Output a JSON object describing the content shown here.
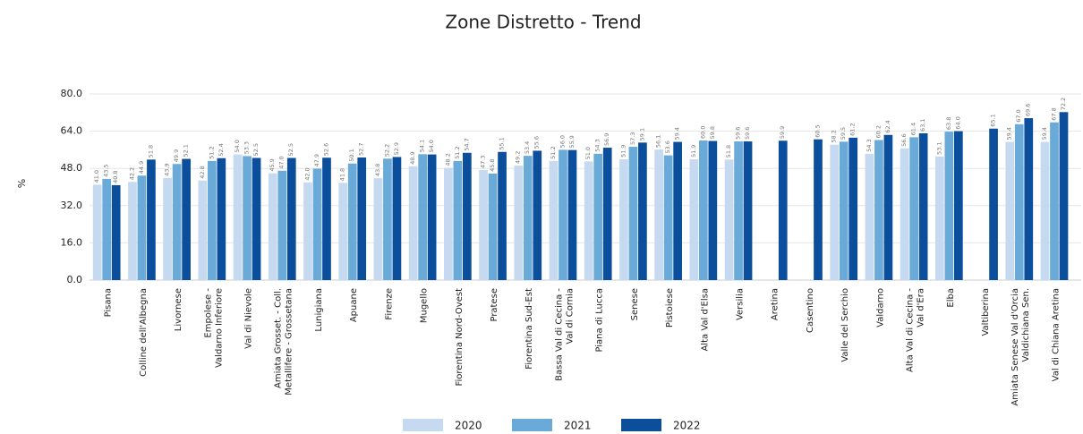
{
  "chart_data": {
    "type": "bar",
    "title": "Zone Distretto - Trend",
    "y_label": "%",
    "categories": [
      "Pisana",
      "Colline dell'Albegna",
      "Livornese",
      "Empolese -\nValdarno Inferiore",
      "Val di Nievole",
      "Amiata Grosset. - Coll.\nMetallifere - Grossetana",
      "Lunigiana",
      "Apuane",
      "Firenze",
      "Mugello",
      "Fiorentina Nord-Ovest",
      "Pratese",
      "Fiorentina Sud-Est",
      "Bassa Val di Cecina -\nVal di Cornia",
      "Piana di Lucca",
      "Senese",
      "Pistoiese",
      "Alta Val d'Elsa",
      "Versilia",
      "Aretina",
      "Casentino",
      "Valle del Serchio",
      "Valdarno",
      "Alta Val di Cecina -\nVal d'Era",
      "Elba",
      "Valtiberina",
      "Amiata Senese Val d'Orcia\nValdichiana Sen.",
      "Val di Chiana Aretina"
    ],
    "series": [
      {
        "name": "2020",
        "color": "#c5d9f0",
        "values": [
          41.0,
          42.2,
          43.9,
          42.8,
          54.0,
          45.9,
          42.0,
          41.8,
          43.8,
          48.9,
          48.2,
          47.3,
          49.2,
          51.2,
          51.0,
          51.9,
          56.1,
          51.9,
          51.8,
          null,
          null,
          58.2,
          54.3,
          56.6,
          53.1,
          null,
          59.4,
          59.4
        ],
        "value_labels": [
          "41.0",
          "42.2",
          "43.9",
          "42.8",
          "54.0",
          "45.9",
          "42.0",
          "41.8",
          "43.8",
          "48.9",
          "48.2",
          "47.3",
          "49.2",
          "51.2",
          "51.0",
          "51.9",
          "56.1",
          "51.9",
          "51.8",
          null,
          null,
          "58.2",
          "54.3",
          "56.6",
          "53.1",
          null,
          "59.4",
          "59.4"
        ]
      },
      {
        "name": "2021",
        "color": "#6aaad8",
        "values": [
          43.5,
          44.9,
          49.9,
          51.2,
          53.3,
          47.0,
          47.9,
          50.1,
          52.2,
          54.1,
          51.2,
          45.8,
          53.4,
          56.0,
          54.3,
          57.3,
          53.6,
          60.0,
          59.6,
          null,
          null,
          59.5,
          60.2,
          61.4,
          63.8,
          null,
          67.0,
          67.8
        ],
        "value_labels": [
          "43.5",
          "44.9",
          "49.9",
          "51.2",
          "53.3",
          "47.0",
          "47.9",
          "50.1",
          "52.2",
          "54.1",
          "51.2",
          "45.8",
          "53.4",
          "56.0",
          "54.3",
          "57.3",
          "53.6",
          "60.0",
          "59.6",
          null,
          null,
          "59.5",
          "60.2",
          "61.4",
          "63.8",
          null,
          "67.0",
          "67.8"
        ]
      },
      {
        "name": "2022",
        "color": "#0b4f9c",
        "values": [
          40.8,
          51.8,
          52.1,
          52.4,
          52.5,
          52.5,
          52.6,
          52.7,
          52.9,
          54.0,
          54.7,
          55.1,
          55.6,
          55.9,
          56.9,
          59.1,
          59.4,
          59.8,
          59.6,
          59.9,
          60.5,
          61.2,
          62.4,
          63.1,
          64.0,
          65.1,
          69.6,
          72.2
        ],
        "value_labels": [
          "40.8",
          "51.8",
          "52.1",
          "52.4",
          "52.5",
          "52.5",
          "52.6",
          "52.7",
          "52.9",
          "54.0",
          "54.7",
          "55.1",
          "55.6",
          "55.9",
          "56.9",
          "59.1",
          "59.4",
          "59.8",
          "59.6",
          "59.9",
          "60.5",
          "61.2",
          "62.4",
          "63.1",
          "64.0",
          "65.1",
          "69.6",
          "72.2"
        ]
      }
    ],
    "ylim": [
      0,
      80
    ],
    "yticks": [
      {
        "value": 0,
        "label": "0.0"
      },
      {
        "value": 16,
        "label": "16.0"
      },
      {
        "value": 32,
        "label": "32.0"
      },
      {
        "value": 48,
        "label": "48.0"
      },
      {
        "value": 64,
        "label": "64.0"
      },
      {
        "value": 80,
        "label": "80.0"
      }
    ],
    "grid": true,
    "legend": "bottom"
  }
}
